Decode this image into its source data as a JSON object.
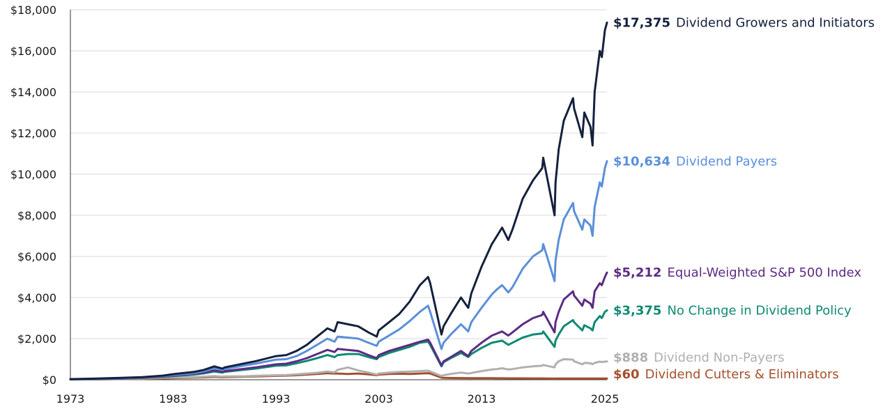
{
  "chart_data": {
    "type": "line",
    "title": "",
    "xlabel": "",
    "ylabel": "",
    "xlim": [
      1973,
      2025.2
    ],
    "ylim": [
      0,
      18000
    ],
    "grid": true,
    "legend": "end-of-line labels",
    "x_ticks": [
      {
        "value": 1973,
        "label": "1973"
      },
      {
        "value": 1983,
        "label": "1983"
      },
      {
        "value": 1993,
        "label": "1993"
      },
      {
        "value": 2003,
        "label": "2003"
      },
      {
        "value": 2013,
        "label": "2013"
      },
      {
        "value": 2025,
        "label": "2025"
      }
    ],
    "y_ticks": [
      {
        "value": 0,
        "label": "$0"
      },
      {
        "value": 2000,
        "label": "$2,000"
      },
      {
        "value": 4000,
        "label": "$4,000"
      },
      {
        "value": 6000,
        "label": "$6,000"
      },
      {
        "value": 8000,
        "label": "$8,000"
      },
      {
        "value": 10000,
        "label": "$10,000"
      },
      {
        "value": 12000,
        "label": "$12,000"
      },
      {
        "value": 14000,
        "label": "$14,000"
      },
      {
        "value": 16000,
        "label": "$16,000"
      },
      {
        "value": 18000,
        "label": "$18,000"
      }
    ],
    "series": [
      {
        "name": "Dividend Growers and Initiators",
        "end_value_label": "$17,375",
        "color": "#14213d",
        "x": [
          1973,
          1975,
          1978,
          1980,
          1982,
          1983,
          1985,
          1986,
          1987,
          1987.8,
          1988,
          1990,
          1991,
          1993,
          1994,
          1995,
          1996,
          1997,
          1998,
          1998.7,
          1999,
          2000,
          2001,
          2002,
          2002.8,
          2003,
          2004,
          2005,
          2006,
          2007,
          2007.8,
          2008,
          2009.1,
          2009.3,
          2010,
          2011,
          2011.7,
          2012,
          2013,
          2014,
          2014.5,
          2015,
          2015.6,
          2016,
          2017,
          2018,
          2018.9,
          2019,
          2020.1,
          2020.2,
          2020.5,
          2021,
          2021.9,
          2022,
          2022.8,
          2023,
          2023.6,
          2023.8,
          2024,
          2024.5,
          2024.7,
          2025,
          2025.2
        ],
        "values": [
          30,
          50,
          90,
          130,
          200,
          270,
          380,
          480,
          650,
          540,
          600,
          800,
          900,
          1150,
          1200,
          1400,
          1700,
          2100,
          2500,
          2350,
          2800,
          2700,
          2600,
          2300,
          2100,
          2400,
          2800,
          3200,
          3800,
          4600,
          5000,
          4700,
          2200,
          2600,
          3200,
          4000,
          3500,
          4200,
          5500,
          6600,
          7000,
          7400,
          6800,
          7300,
          8800,
          9700,
          10300,
          10800,
          8000,
          9600,
          11200,
          12600,
          13700,
          13200,
          11800,
          13000,
          12300,
          11400,
          14000,
          16000,
          15700,
          17000,
          17375
        ]
      },
      {
        "name": "Dividend Payers",
        "end_value_label": "$10,634",
        "color": "#5b8fd9",
        "x": [
          1973,
          1975,
          1978,
          1980,
          1982,
          1983,
          1985,
          1986,
          1987,
          1987.8,
          1988,
          1990,
          1991,
          1993,
          1994,
          1995,
          1996,
          1997,
          1998,
          1998.7,
          1999,
          2000,
          2001,
          2002,
          2002.8,
          2003,
          2004,
          2005,
          2006,
          2007,
          2007.8,
          2008,
          2009.1,
          2009.3,
          2010,
          2011,
          2011.7,
          2012,
          2013,
          2014,
          2014.5,
          2015,
          2015.6,
          2016,
          2017,
          2018,
          2018.9,
          2019,
          2020.1,
          2020.2,
          2020.5,
          2021,
          2021.9,
          2022,
          2022.8,
          2023,
          2023.6,
          2023.8,
          2024,
          2024.5,
          2024.7,
          2025,
          2025.2
        ],
        "values": [
          25,
          40,
          75,
          110,
          170,
          230,
          320,
          410,
          560,
          470,
          520,
          700,
          780,
          980,
          1000,
          1150,
          1400,
          1700,
          2000,
          1850,
          2100,
          2050,
          2000,
          1800,
          1650,
          1850,
          2150,
          2450,
          2850,
          3300,
          3600,
          3300,
          1500,
          1800,
          2200,
          2700,
          2350,
          2800,
          3500,
          4150,
          4400,
          4600,
          4250,
          4500,
          5400,
          6000,
          6300,
          6600,
          4800,
          5800,
          6800,
          7800,
          8600,
          8200,
          7300,
          7800,
          7500,
          7000,
          8400,
          9600,
          9400,
          10300,
          10634
        ]
      },
      {
        "name": "Equal-Weighted S&P 500 Index",
        "end_value_label": "$5,212",
        "color": "#5b2c83",
        "x": [
          1973,
          1975,
          1978,
          1980,
          1982,
          1983,
          1985,
          1986,
          1987,
          1987.8,
          1988,
          1990,
          1991,
          1993,
          1994,
          1995,
          1996,
          1997,
          1998,
          1998.7,
          1999,
          2000,
          2001,
          2002,
          2002.8,
          2003,
          2004,
          2005,
          2006,
          2007,
          2007.8,
          2008,
          2009.1,
          2009.3,
          2010,
          2011,
          2011.7,
          2012,
          2013,
          2014,
          2014.5,
          2015,
          2015.6,
          2016,
          2017,
          2018,
          2018.9,
          2019,
          2020.1,
          2020.2,
          2020.5,
          2021,
          2021.9,
          2022,
          2022.8,
          2023,
          2023.6,
          2023.8,
          2024,
          2024.5,
          2024.7,
          2025,
          2025.2
        ],
        "values": [
          20,
          30,
          60,
          95,
          150,
          200,
          280,
          350,
          450,
          390,
          420,
          540,
          600,
          750,
          780,
          900,
          1050,
          1250,
          1450,
          1350,
          1500,
          1450,
          1400,
          1200,
          1050,
          1200,
          1400,
          1550,
          1700,
          1850,
          1950,
          1800,
          700,
          900,
          1100,
          1400,
          1150,
          1400,
          1800,
          2150,
          2250,
          2350,
          2150,
          2300,
          2700,
          3000,
          3150,
          3300,
          2300,
          2800,
          3300,
          3900,
          4300,
          4100,
          3600,
          3900,
          3700,
          3500,
          4300,
          4700,
          4600,
          5000,
          5212
        ]
      },
      {
        "name": "No Change in Dividend Policy",
        "end_value_label": "$3,375",
        "color": "#0f8a72",
        "x": [
          1973,
          1975,
          1978,
          1980,
          1982,
          1983,
          1985,
          1986,
          1987,
          1987.8,
          1988,
          1990,
          1991,
          1993,
          1994,
          1995,
          1996,
          1997,
          1998,
          1998.7,
          1999,
          2000,
          2001,
          2002,
          2002.8,
          2003,
          2004,
          2005,
          2006,
          2007,
          2007.8,
          2008,
          2009.1,
          2009.3,
          2010,
          2011,
          2011.7,
          2012,
          2013,
          2014,
          2014.5,
          2015,
          2015.6,
          2016,
          2017,
          2018,
          2018.9,
          2019,
          2020.1,
          2020.2,
          2020.5,
          2021,
          2021.9,
          2022,
          2022.8,
          2023,
          2023.6,
          2023.8,
          2024,
          2024.5,
          2024.7,
          2025,
          2025.2
        ],
        "values": [
          20,
          28,
          55,
          85,
          135,
          180,
          250,
          310,
          400,
          350,
          380,
          490,
          540,
          680,
          700,
          800,
          920,
          1050,
          1200,
          1100,
          1200,
          1250,
          1250,
          1100,
          1000,
          1100,
          1300,
          1450,
          1600,
          1800,
          1850,
          1700,
          650,
          850,
          1050,
          1300,
          1100,
          1250,
          1550,
          1800,
          1850,
          1900,
          1700,
          1800,
          2050,
          2200,
          2250,
          2350,
          1600,
          1900,
          2200,
          2600,
          2900,
          2800,
          2400,
          2650,
          2500,
          2400,
          2800,
          3100,
          3000,
          3300,
          3375
        ]
      },
      {
        "name": "Dividend Non-Payers",
        "end_value_label": "$888",
        "color": "#b0b0b0",
        "x": [
          1973,
          1975,
          1978,
          1980,
          1982,
          1983,
          1985,
          1986,
          1987,
          1987.8,
          1988,
          1990,
          1991,
          1993,
          1994,
          1995,
          1996,
          1997,
          1998,
          1998.7,
          1999,
          2000,
          2001,
          2002,
          2002.8,
          2003,
          2004,
          2005,
          2006,
          2007,
          2007.8,
          2008,
          2009.1,
          2009.3,
          2010,
          2011,
          2011.7,
          2012,
          2013,
          2014,
          2014.5,
          2015,
          2015.6,
          2016,
          2017,
          2018,
          2018.9,
          2019,
          2020.1,
          2020.2,
          2020.5,
          2021,
          2021.9,
          2022,
          2022.8,
          2023,
          2023.6,
          2023.8,
          2024,
          2024.5,
          2024.7,
          2025,
          2025.2
        ],
        "values": [
          15,
          20,
          40,
          60,
          90,
          110,
          130,
          150,
          180,
          150,
          160,
          170,
          190,
          220,
          230,
          260,
          300,
          340,
          400,
          360,
          480,
          600,
          450,
          350,
          250,
          300,
          350,
          380,
          400,
          420,
          440,
          400,
          180,
          220,
          280,
          350,
          300,
          330,
          420,
          500,
          520,
          560,
          500,
          520,
          600,
          650,
          680,
          720,
          600,
          750,
          900,
          1000,
          980,
          900,
          750,
          820,
          800,
          760,
          820,
          880,
          860,
          880,
          888
        ]
      },
      {
        "name": "Dividend Cutters & Eliminators",
        "end_value_label": "$60",
        "color": "#a4502d",
        "x": [
          1973,
          1975,
          1978,
          1980,
          1982,
          1983,
          1985,
          1986,
          1987,
          1987.8,
          1988,
          1990,
          1991,
          1993,
          1994,
          1995,
          1996,
          1997,
          1998,
          1998.7,
          1999,
          2000,
          2001,
          2002,
          2002.8,
          2003,
          2004,
          2005,
          2006,
          2007,
          2007.8,
          2008,
          2009.1,
          2009.3,
          2010,
          2011,
          2011.7,
          2012,
          2013,
          2014,
          2014.5,
          2015,
          2015.6,
          2016,
          2017,
          2018,
          2018.9,
          2019,
          2020.1,
          2020.2,
          2020.5,
          2021,
          2021.9,
          2022,
          2022.8,
          2023,
          2023.6,
          2023.8,
          2024,
          2024.5,
          2024.7,
          2025,
          2025.2
        ],
        "values": [
          12,
          16,
          30,
          45,
          65,
          80,
          100,
          115,
          140,
          120,
          125,
          150,
          160,
          190,
          200,
          220,
          250,
          280,
          320,
          300,
          300,
          280,
          300,
          260,
          220,
          250,
          280,
          290,
          280,
          300,
          320,
          300,
          100,
          90,
          85,
          80,
          75,
          75,
          75,
          75,
          72,
          70,
          68,
          68,
          68,
          66,
          65,
          65,
          55,
          58,
          60,
          62,
          62,
          60,
          58,
          60,
          60,
          58,
          60,
          60,
          60,
          60,
          60
        ]
      }
    ]
  }
}
